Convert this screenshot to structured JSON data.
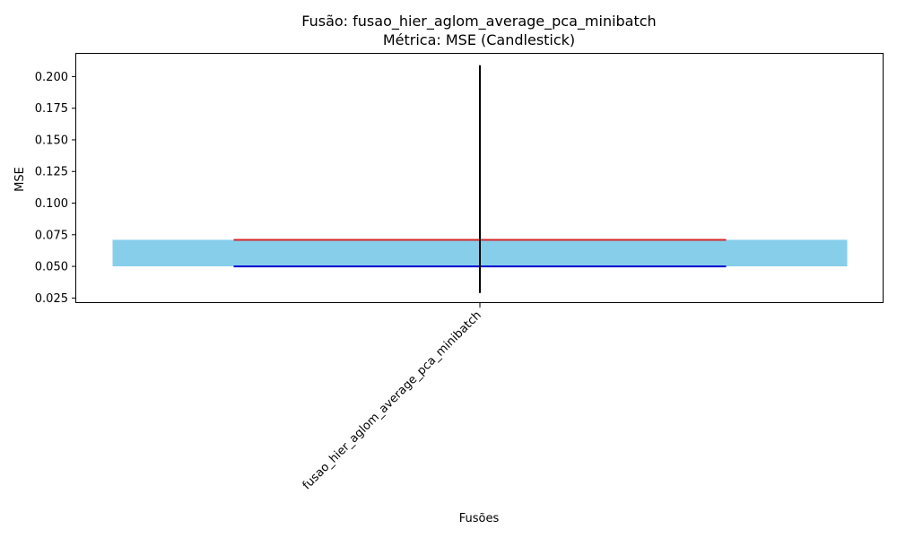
{
  "chart_data": {
    "type": "candlestick",
    "title": "Fusão: fusao_hier_aglom_average_pca_minibatch",
    "subtitle": "Métrica: MSE (Candlestick)",
    "xlabel": "Fusões",
    "ylabel": "MSE",
    "categories": [
      "fusao_hier_aglom_average_pca_minibatch"
    ],
    "series": [
      {
        "open": 0.05,
        "close": 0.071,
        "low": 0.029,
        "high": 0.209
      }
    ],
    "ylim": [
      0.021,
      0.218
    ],
    "yticks": [
      "0.025",
      "0.050",
      "0.075",
      "0.100",
      "0.125",
      "0.150",
      "0.175",
      "0.200"
    ],
    "grid": false,
    "colors": {
      "body": "#87ceeb",
      "wick": "#000000",
      "close_line": "#d62728",
      "open_line": "#0000cc"
    }
  }
}
